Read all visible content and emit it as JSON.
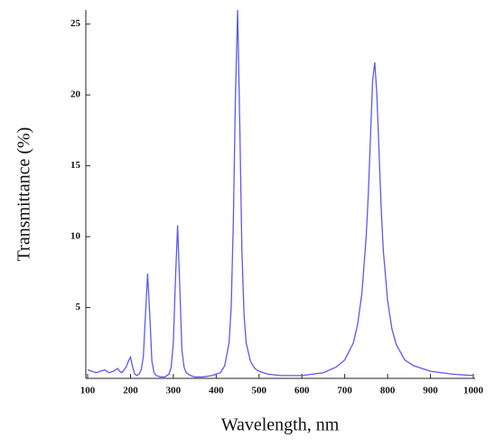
{
  "chart_data": {
    "type": "line",
    "x_label": "Wavelength, nm",
    "y_label": "Transmittance (%)",
    "x": [
      100,
      110,
      120,
      130,
      140,
      145,
      150,
      160,
      170,
      175,
      180,
      190,
      195,
      200,
      205,
      210,
      215,
      220,
      225,
      230,
      235,
      240,
      245,
      250,
      255,
      260,
      270,
      280,
      290,
      295,
      300,
      305,
      310,
      315,
      320,
      325,
      330,
      340,
      350,
      370,
      390,
      410,
      420,
      430,
      435,
      440,
      445,
      450,
      455,
      460,
      465,
      470,
      480,
      490,
      500,
      520,
      550,
      600,
      650,
      680,
      700,
      720,
      730,
      740,
      750,
      755,
      760,
      765,
      770,
      775,
      780,
      785,
      790,
      800,
      810,
      820,
      840,
      860,
      900,
      950,
      1000
    ],
    "values": [
      0.6,
      0.5,
      0.4,
      0.5,
      0.6,
      0.5,
      0.4,
      0.5,
      0.7,
      0.5,
      0.4,
      0.8,
      1.2,
      1.5,
      0.8,
      0.3,
      0.2,
      0.3,
      0.6,
      1.5,
      4.5,
      7.4,
      4.5,
      1.2,
      0.4,
      0.2,
      0.1,
      0.1,
      0.3,
      0.8,
      2.5,
      7.0,
      10.8,
      6.5,
      2.0,
      0.8,
      0.4,
      0.2,
      0.1,
      0.1,
      0.2,
      0.4,
      0.9,
      2.5,
      5,
      11,
      20,
      26,
      18,
      9,
      4.5,
      2.5,
      1.2,
      0.7,
      0.5,
      0.3,
      0.2,
      0.2,
      0.4,
      0.8,
      1.3,
      2.5,
      3.8,
      6,
      10,
      13,
      17,
      21,
      22.3,
      20,
      16,
      12,
      9,
      5.5,
      3.5,
      2.4,
      1.3,
      0.9,
      0.5,
      0.3,
      0.2
    ],
    "color": "#5a5af0",
    "xlim": [
      100,
      1000
    ],
    "xticks": [
      100,
      200,
      300,
      400,
      500,
      600,
      700,
      800,
      900,
      1000
    ],
    "ylim": [
      0,
      26
    ],
    "yticks": [
      5,
      10,
      15,
      20,
      25
    ],
    "grid": false
  }
}
